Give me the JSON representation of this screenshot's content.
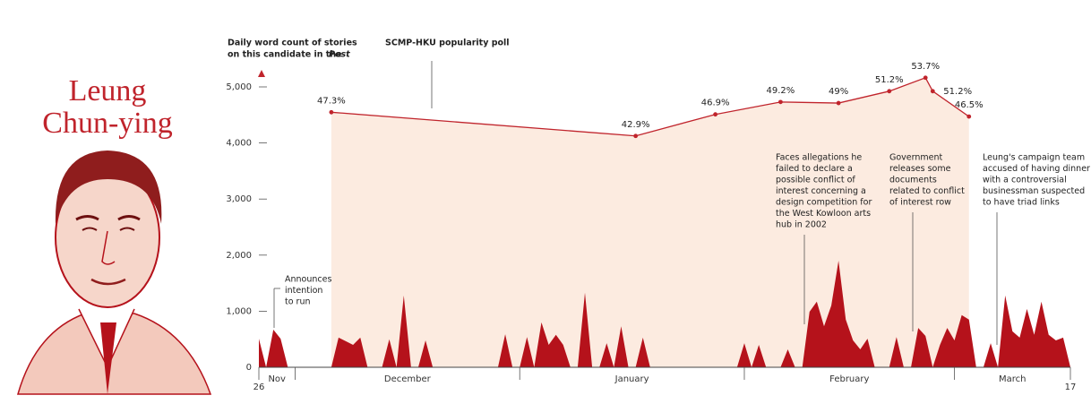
{
  "chart_data": {
    "type": "area",
    "name": [
      "Leung",
      "Chun-ying"
    ],
    "y_axis_label": [
      "Daily word count of stories",
      "on this candidate in the",
      "Post"
    ],
    "ylim": [
      0,
      5000
    ],
    "yticks": [
      0,
      {
        "value": 1000,
        "label": "1,000"
      },
      {
        "value": 2000,
        "label": "2,000"
      },
      {
        "value": 3000,
        "label": "3,000"
      },
      {
        "value": 4000,
        "label": "4,000"
      },
      {
        "value": 5000,
        "label": "5,000"
      }
    ],
    "xlim": [
      0,
      112
    ],
    "xticks": [
      {
        "value": 0,
        "label": "26"
      },
      {
        "value": 112,
        "label": "17"
      }
    ],
    "months": [
      "Nov",
      "December",
      "January",
      "February",
      "March"
    ],
    "month_starts": [
      5,
      36,
      67,
      96
    ],
    "series": [
      {
        "name": "Daily word count",
        "color": "#b5121b",
        "x": [
          0,
          1,
          2,
          3,
          4,
          10,
          11,
          13,
          14,
          15,
          17,
          18,
          19,
          20,
          21,
          22,
          23,
          24,
          33,
          34,
          35,
          36,
          37,
          38,
          39,
          40,
          41,
          42,
          43,
          44,
          45,
          46,
          47,
          48,
          49,
          50,
          51,
          52,
          53,
          54,
          66,
          67,
          68,
          69,
          70,
          72,
          73,
          74,
          75,
          76,
          77,
          78,
          79,
          80,
          81,
          82,
          83,
          84,
          85,
          87,
          88,
          89,
          90,
          91,
          92,
          93,
          94,
          95,
          96,
          97,
          98,
          99,
          100,
          101,
          102,
          103,
          104,
          105,
          106,
          107,
          108,
          109,
          110,
          111,
          112
        ],
        "values": [
          510,
          0,
          670,
          510,
          0,
          0,
          530,
          400,
          530,
          0,
          0,
          500,
          0,
          1280,
          0,
          0,
          480,
          0,
          0,
          590,
          0,
          0,
          540,
          0,
          800,
          400,
          580,
          400,
          0,
          0,
          1330,
          0,
          0,
          430,
          0,
          730,
          0,
          0,
          530,
          0,
          0,
          430,
          0,
          400,
          0,
          0,
          320,
          0,
          0,
          990,
          1170,
          730,
          1100,
          1900,
          850,
          480,
          320,
          510,
          0,
          0,
          540,
          0,
          0,
          700,
          560,
          0,
          400,
          700,
          480,
          930,
          850,
          0,
          0,
          430,
          0,
          1280,
          640,
          530,
          1040,
          580,
          1170,
          580,
          480,
          530,
          0
        ]
      },
      {
        "name": "SCMP-HKU popularity poll",
        "color": "#c0242c",
        "fill": "#fcebe0",
        "axis": "y2",
        "x": [
          10,
          52,
          63,
          72,
          80,
          87,
          92,
          93,
          98
        ],
        "values": [
          47.3,
          42.9,
          46.9,
          49.2,
          49,
          51.2,
          53.7,
          51.2,
          46.5
        ],
        "value_labels": [
          "47.3%",
          "42.9%",
          "46.9%",
          "49.2%",
          "49%",
          "51.2%",
          "53.7%",
          "51.2%",
          "46.5%"
        ]
      }
    ],
    "y2lim": [
      0,
      52
    ],
    "annotations": [
      [
        "Announces",
        "intention",
        "to run"
      ],
      [
        "Faces allegations he",
        "failed to declare a",
        "possible conflict of",
        "interest concerning a",
        "design competition for",
        "the West Kowloon arts",
        "hub in 2002"
      ],
      [
        "Government",
        "releases some",
        "documents",
        "related to conflict",
        "of interest row"
      ],
      [
        "Leung's campaign team",
        "accused of having dinner",
        "with a controversial",
        "businessman suspected",
        "to have triad links"
      ]
    ]
  }
}
